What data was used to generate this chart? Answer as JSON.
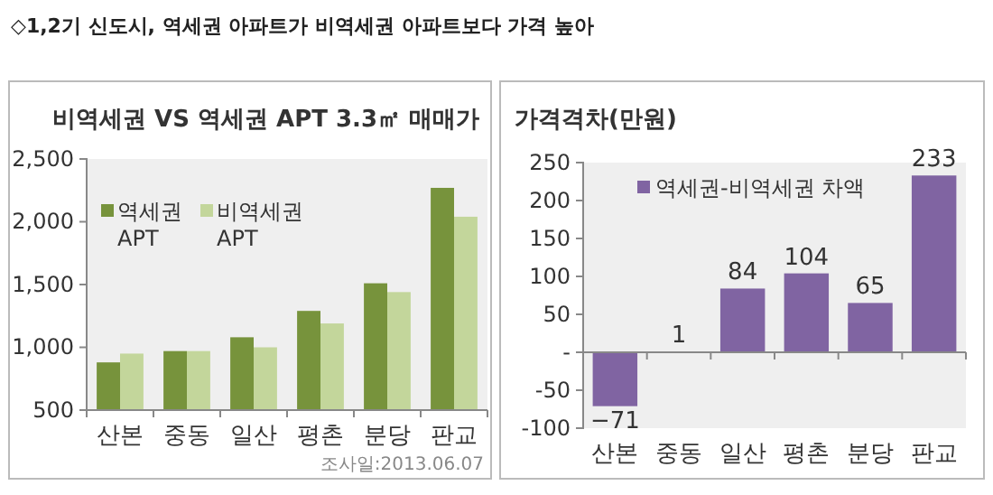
{
  "chart_data": [
    {
      "type": "bar",
      "title": "비역세권 VS 역세권 APT 3.3㎡ 매매가",
      "categories": [
        "산본",
        "중동",
        "일산",
        "평촌",
        "분당",
        "판교"
      ],
      "series": [
        {
          "name": "역세권 APT",
          "color": "#77933c",
          "values": [
            880,
            970,
            1080,
            1290,
            1510,
            2270
          ]
        },
        {
          "name": "비역세권 APT",
          "color": "#c3d69b",
          "values": [
            950,
            970,
            1000,
            1190,
            1440,
            2040
          ]
        }
      ],
      "ylim": [
        500,
        2500
      ],
      "yticks": [
        500,
        {
          "value": 1000,
          "label": "1,000"
        },
        {
          "value": 1500,
          "label": "1,500"
        },
        {
          "value": 2000,
          "label": "2,000"
        },
        {
          "value": 2500,
          "label": "2,500"
        }
      ],
      "legend": "top left",
      "annotations": [
        "◇1,2기 신도시, 역세권 아파트가 비역세권 아파트보다 가격 높아",
        "조사일:2013.06.07"
      ]
    },
    {
      "type": "bar",
      "title": "가격격차(만원)",
      "categories": [
        "산본",
        "중동",
        "일산",
        "평촌",
        "분당",
        "판교"
      ],
      "series": [
        {
          "name": "역세권-비역세권 차액",
          "color": "#8064a2",
          "values": [
            -71,
            1,
            84,
            104,
            65,
            233
          ]
        }
      ],
      "ylim": [
        -100,
        250
      ],
      "yticks": [
        -100,
        -50,
        {
          "value": 0,
          "label": "-"
        },
        50,
        100,
        150,
        200,
        250
      ],
      "legend": "top left",
      "data_labels": true
    }
  ]
}
